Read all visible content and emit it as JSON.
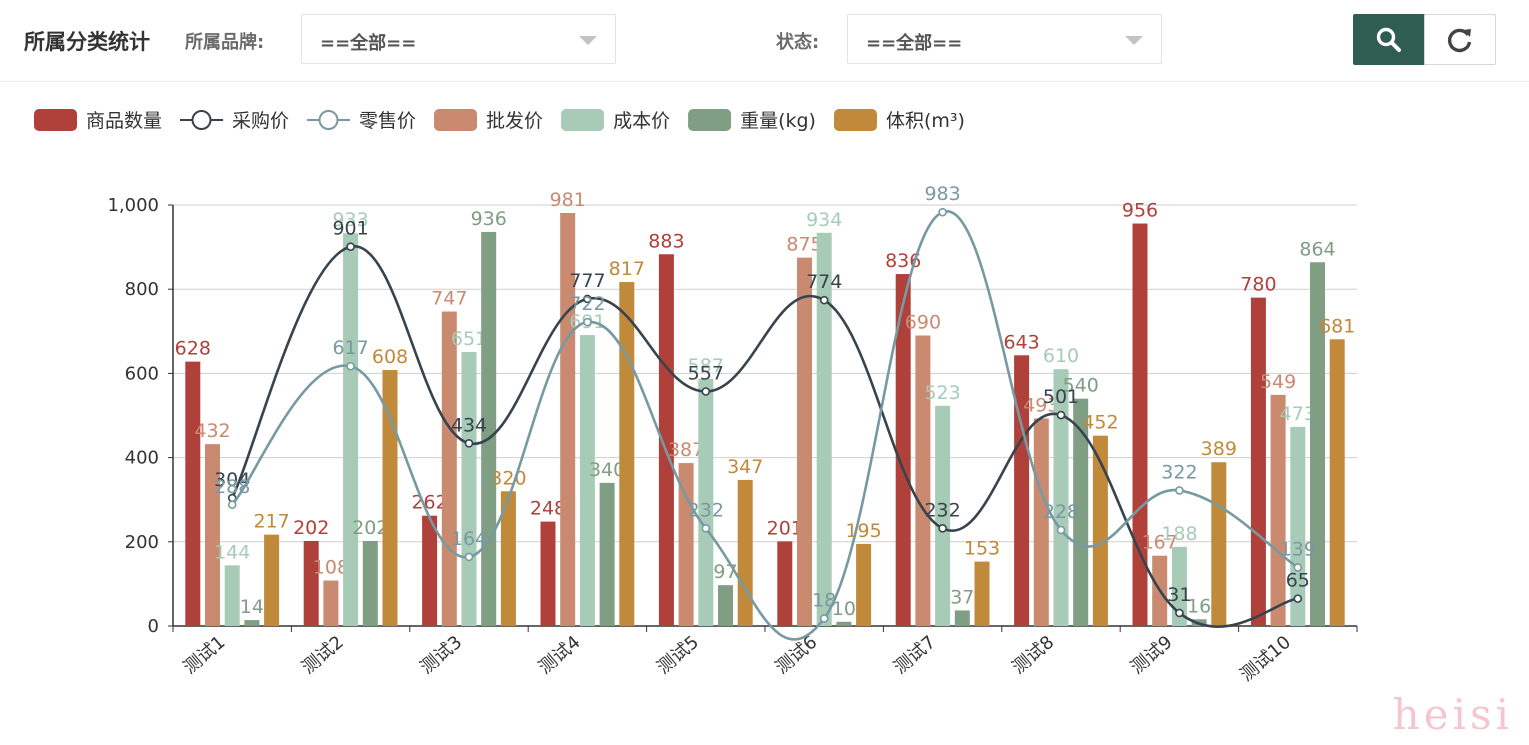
{
  "header": {
    "title": "所属分类统计",
    "brand_label": "所属品牌:",
    "brand_value": "==全部==",
    "status_label": "状态:",
    "status_value": "==全部=="
  },
  "icons": {
    "search": "search-icon",
    "refresh": "refresh-icon"
  },
  "watermark": "heisi",
  "chart_data": {
    "type": "bar",
    "categories": [
      "测试1",
      "测试2",
      "测试3",
      "测试4",
      "测试5",
      "测试6",
      "测试7",
      "测试8",
      "测试9",
      "测试10"
    ],
    "ylim": [
      0,
      1000
    ],
    "yticks": [
      "0",
      "200",
      "400",
      "600",
      "800",
      "1,000"
    ],
    "grid": true,
    "legend_position": "top-left",
    "series": [
      {
        "name": "商品数量",
        "type": "bar",
        "color": "#b0403a",
        "values": [
          628,
          202,
          262,
          248,
          883,
          201,
          836,
          643,
          956,
          780
        ]
      },
      {
        "name": "采购价",
        "type": "line",
        "color": "#37434d",
        "values": [
          304,
          901,
          434,
          777,
          557,
          774,
          232,
          501,
          31,
          65
        ]
      },
      {
        "name": "零售价",
        "type": "line",
        "color": "#779aa2",
        "values": [
          288,
          617,
          164,
          722,
          232,
          18,
          983,
          228,
          322,
          139
        ]
      },
      {
        "name": "批发价",
        "type": "bar",
        "color": "#c98a70",
        "values": [
          432,
          108,
          747,
          981,
          387,
          875,
          690,
          493,
          167,
          549
        ]
      },
      {
        "name": "成本价",
        "type": "bar",
        "color": "#a7cbb7",
        "values": [
          144,
          933,
          651,
          691,
          587,
          934,
          523,
          610,
          188,
          473
        ]
      },
      {
        "name": "重量(kg)",
        "type": "bar",
        "color": "#7f9e83",
        "values": [
          14,
          202,
          936,
          340,
          97,
          10,
          37,
          540,
          16,
          864
        ]
      },
      {
        "name": "体积(m³)",
        "type": "bar",
        "color": "#c1893a",
        "values": [
          217,
          608,
          320,
          817,
          347,
          195,
          153,
          452,
          389,
          681
        ]
      }
    ]
  }
}
